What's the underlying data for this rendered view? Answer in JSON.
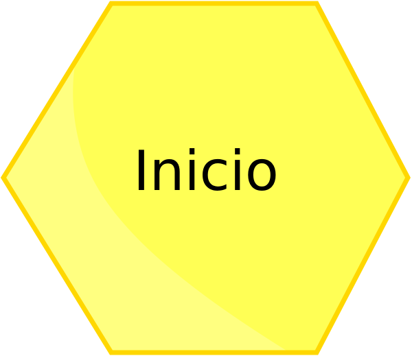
{
  "button": {
    "label": "Inicio",
    "shape_icon": "hexagon-icon"
  },
  "colors": {
    "fill": "#FFFF55",
    "border": "#FFD700",
    "highlight": "#FFFF88",
    "text": "#000000"
  }
}
